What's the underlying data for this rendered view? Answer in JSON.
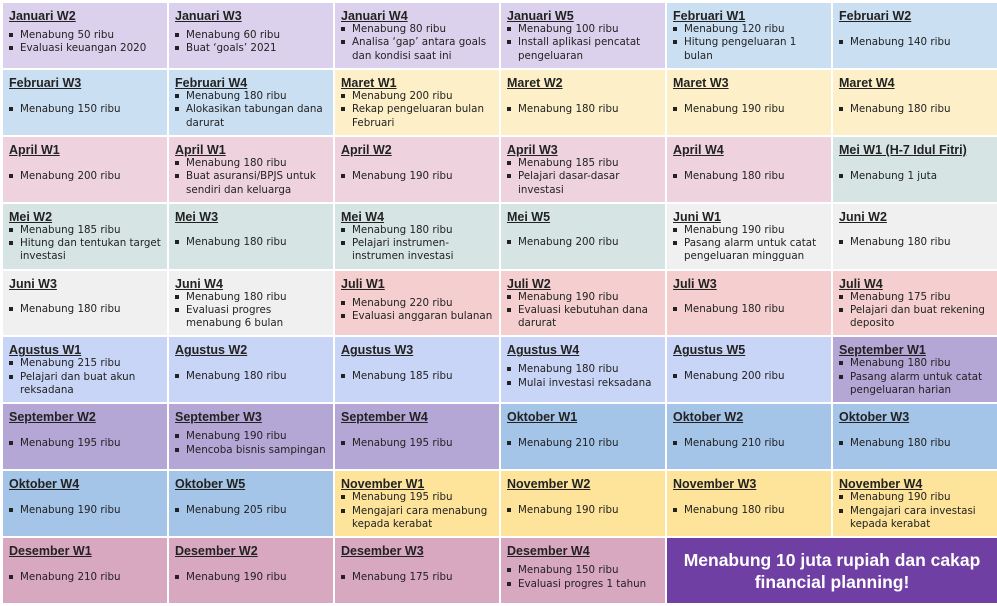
{
  "colors": {
    "lavender": "#dcd1ec",
    "blue": "#cbdff3",
    "yellow": "#fdf0c8",
    "pink": "#eed3df",
    "teal": "#d6e5e3",
    "gray": "#f0f0f0",
    "salmon": "#f5cfcf",
    "periwinkle": "#c9d5f6",
    "purple": "#b4a7d6",
    "skyblue": "#a4c4e8",
    "gold": "#fde49a",
    "rose": "#d8a7c0",
    "final": "#6f3fa3"
  },
  "cells": [
    {
      "title": "Januari W2",
      "color": "#dcd1ec",
      "items": [
        "Menabung 50 ribu",
        "Evaluasi keuangan 2020"
      ]
    },
    {
      "title": "Januari W3",
      "color": "#dcd1ec",
      "items": [
        "Menabung 60 ribu",
        "Buat ‘goals’ 2021"
      ]
    },
    {
      "title": "Januari W4",
      "color": "#dcd1ec",
      "items": [
        "Menabung 80 ribu",
        "Analisa ‘gap’ antara goals dan kondisi saat ini"
      ]
    },
    {
      "title": "Januari W5",
      "color": "#dcd1ec",
      "items": [
        "Menabung 100 ribu",
        "Install aplikasi pencatat pengeluaran"
      ]
    },
    {
      "title": "Februari W1",
      "color": "#cbdff3",
      "items": [
        "Menabung 120 ribu",
        "Hitung pengeluaran 1 bulan"
      ]
    },
    {
      "title": "Februari W2",
      "color": "#cbdff3",
      "items": [
        "Menabung 140 ribu"
      ]
    },
    {
      "title": "Februari W3",
      "color": "#cbdff3",
      "items": [
        "Menabung 150 ribu"
      ]
    },
    {
      "title": "Februari W4",
      "color": "#cbdff3",
      "items": [
        "Menabung 180 ribu",
        "Alokasikan tabungan dana darurat"
      ]
    },
    {
      "title": "Maret W1",
      "color": "#fdf0c8",
      "items": [
        "Menabung 200 ribu",
        "Rekap pengeluaran bulan Februari"
      ]
    },
    {
      "title": "Maret W2",
      "color": "#fdf0c8",
      "items": [
        "Menabung 180 ribu"
      ]
    },
    {
      "title": "Maret W3",
      "color": "#fdf0c8",
      "items": [
        "Menabung 190 ribu"
      ]
    },
    {
      "title": "Maret W4",
      "color": "#fdf0c8",
      "items": [
        "Menabung 180 ribu"
      ]
    },
    {
      "title": "April W1",
      "color": "#eed3df",
      "items": [
        "Menabung 200 ribu"
      ]
    },
    {
      "title": "April W1",
      "color": "#eed3df",
      "items": [
        "Menabung 180 ribu",
        "Buat asuransi/BPJS untuk sendiri dan keluarga"
      ]
    },
    {
      "title": "April W2",
      "color": "#eed3df",
      "items": [
        "Menabung 190 ribu"
      ]
    },
    {
      "title": "April W3",
      "color": "#eed3df",
      "items": [
        "Menabung 185 ribu",
        "Pelajari dasar-dasar investasi"
      ]
    },
    {
      "title": "April W4",
      "color": "#eed3df",
      "items": [
        "Menabung 180 ribu"
      ]
    },
    {
      "title": "Mei W1 (H-7 Idul Fitri)",
      "color": "#d6e5e3",
      "items": [
        "Menabung 1 juta"
      ]
    },
    {
      "title": "Mei W2",
      "color": "#d6e5e3",
      "items": [
        "Menabung 185 ribu",
        "Hitung dan tentukan target investasi"
      ]
    },
    {
      "title": "Mei W3",
      "color": "#d6e5e3",
      "items": [
        "Menabung 180 ribu"
      ]
    },
    {
      "title": "Mei W4",
      "color": "#d6e5e3",
      "items": [
        "Menabung 180 ribu",
        "Pelajari instrumen-instrumen investasi"
      ]
    },
    {
      "title": "Mei W5",
      "color": "#d6e5e3",
      "items": [
        "Menabung 200 ribu"
      ]
    },
    {
      "title": "Juni W1",
      "color": "#f0f0f0",
      "items": [
        "Menabung 190 ribu",
        "Pasang alarm untuk catat pengeluaran mingguan"
      ]
    },
    {
      "title": "Juni W2",
      "color": "#f0f0f0",
      "items": [
        "Menabung 180 ribu"
      ]
    },
    {
      "title": "Juni W3",
      "color": "#f0f0f0",
      "items": [
        "Menabung 180 ribu"
      ]
    },
    {
      "title": "Juni W4",
      "color": "#f0f0f0",
      "items": [
        "Menabung 180 ribu",
        "Evaluasi progres menabung 6 bulan"
      ]
    },
    {
      "title": "Juli W1",
      "color": "#f5cfcf",
      "items": [
        "Menabung 220 ribu",
        "Evaluasi anggaran bulanan"
      ]
    },
    {
      "title": "Juli W2",
      "color": "#f5cfcf",
      "items": [
        "Menabung 190 ribu",
        "Evaluasi kebutuhan dana darurat"
      ]
    },
    {
      "title": "Juli W3",
      "color": "#f5cfcf",
      "items": [
        "Menabung 180 ribu"
      ]
    },
    {
      "title": "Juli W4",
      "color": "#f5cfcf",
      "items": [
        "Menabung 175 ribu",
        "Pelajari dan buat rekening deposito"
      ]
    },
    {
      "title": "Agustus W1",
      "color": "#c9d5f6",
      "items": [
        "Menabung 215 ribu",
        "Pelajari dan buat akun reksadana"
      ]
    },
    {
      "title": "Agustus W2",
      "color": "#c9d5f6",
      "items": [
        "Menabung 180 ribu"
      ]
    },
    {
      "title": "Agustus W3",
      "color": "#c9d5f6",
      "items": [
        "Menabung 185 ribu"
      ]
    },
    {
      "title": "Agustus W4",
      "color": "#c9d5f6",
      "items": [
        "Menabung 180 ribu",
        "Mulai investasi reksadana"
      ]
    },
    {
      "title": "Agustus W5",
      "color": "#c9d5f6",
      "items": [
        "Menabung 200 ribu"
      ]
    },
    {
      "title": "September W1",
      "color": "#b4a7d6",
      "items": [
        "Menabung 180 ribu",
        "Pasang alarm untuk catat pengeluaran harian"
      ]
    },
    {
      "title": "September W2",
      "color": "#b4a7d6",
      "items": [
        "Menabung 195 ribu"
      ]
    },
    {
      "title": "September W3",
      "color": "#b4a7d6",
      "items": [
        "Menabung 190 ribu",
        "Mencoba bisnis sampingan"
      ]
    },
    {
      "title": "September W4",
      "color": "#b4a7d6",
      "items": [
        "Menabung 195 ribu"
      ]
    },
    {
      "title": "Oktober W1",
      "color": "#a4c4e8",
      "items": [
        "Menabung 210 ribu"
      ]
    },
    {
      "title": "Oktober W2",
      "color": "#a4c4e8",
      "items": [
        "Menabung 210 ribu"
      ]
    },
    {
      "title": "Oktober W3",
      "color": "#a4c4e8",
      "items": [
        "Menabung 180 ribu"
      ]
    },
    {
      "title": "Oktober W4",
      "color": "#a4c4e8",
      "items": [
        "Menabung 190 ribu"
      ]
    },
    {
      "title": "Oktober W5",
      "color": "#a4c4e8",
      "items": [
        "Menabung 205 ribu"
      ]
    },
    {
      "title": "November W1",
      "color": "#fde49a",
      "items": [
        "Menabung 195 ribu",
        "Mengajari cara menabung kepada kerabat"
      ]
    },
    {
      "title": "November W2",
      "color": "#fde49a",
      "items": [
        "Menabung 190 ribu"
      ]
    },
    {
      "title": "November W3",
      "color": "#fde49a",
      "items": [
        "Menabung 180 ribu"
      ]
    },
    {
      "title": "November W4",
      "color": "#fde49a",
      "items": [
        "Menabung 190 ribu",
        "Mengajari cara investasi kepada kerabat"
      ]
    },
    {
      "title": "Desember W1",
      "color": "#d8a7c0",
      "items": [
        "Menabung 210 ribu"
      ]
    },
    {
      "title": "Desember W2",
      "color": "#d8a7c0",
      "items": [
        "Menabung 190 ribu"
      ]
    },
    {
      "title": "Desember W3",
      "color": "#d8a7c0",
      "items": [
        "Menabung 175 ribu"
      ]
    },
    {
      "title": "Desember W4",
      "color": "#d8a7c0",
      "items": [
        "Menabung 150 ribu",
        "Evaluasi progres 1 tahun"
      ]
    }
  ],
  "final_message": "Menabung 10 juta rupiah dan cakap financial planning!"
}
